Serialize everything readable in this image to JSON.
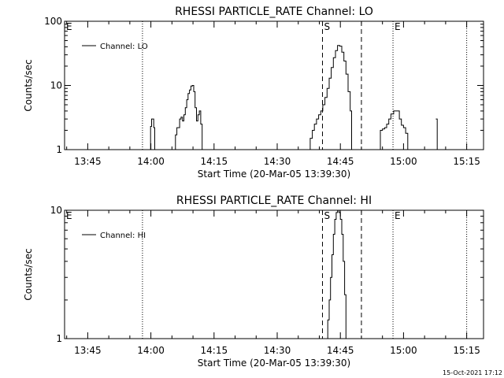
{
  "chart_data": [
    {
      "type": "line",
      "title": "RHESSI PARTICLE_RATE Channel: LO",
      "xlabel": "Start Time (20-Mar-05 13:39:30)",
      "ylabel": "Counts/sec",
      "yscale": "log",
      "ylim": [
        1,
        100
      ],
      "yticks": [
        {
          "value": 1,
          "label": "1"
        },
        {
          "value": 10,
          "label": "10"
        },
        {
          "value": 100,
          "label": "100"
        }
      ],
      "xlim": [
        "13:39:30",
        "15:19:00"
      ],
      "xticks": [
        "13:45",
        "14:00",
        "14:15",
        "14:30",
        "14:45",
        "15:00",
        "15:15"
      ],
      "legend": {
        "position": "top-left",
        "entries": [
          "Channel: LO"
        ]
      },
      "markers": [
        {
          "time": "13:58:00",
          "style": "dotted",
          "label": ""
        },
        {
          "time": "14:40:45",
          "style": "dashed",
          "label": "S"
        },
        {
          "time": "14:50:00",
          "style": "dashed",
          "label": ""
        },
        {
          "time": "14:57:30",
          "style": "dotted",
          "label": ""
        },
        {
          "time": "15:15:00",
          "style": "dotted",
          "label": ""
        }
      ],
      "annotations": [
        {
          "text": "E",
          "time": "13:39:30"
        },
        {
          "text": "S",
          "time": "14:40:45"
        },
        {
          "text": "E",
          "time": "14:57:30"
        }
      ],
      "series": [
        {
          "name": "Channel: LO",
          "segments": [
            [
              [
                "13:59:40",
                1
              ],
              [
                "13:59:55",
                2.3
              ],
              [
                "14:00:10",
                3
              ],
              [
                "14:00:25",
                3
              ],
              [
                "14:00:40",
                2.2
              ],
              [
                "14:00:55",
                1
              ]
            ],
            [
              [
                "14:05:30",
                1
              ],
              [
                "14:05:50",
                1.7
              ],
              [
                "14:06:10",
                2.2
              ],
              [
                "14:06:30",
                2.2
              ],
              [
                "14:06:50",
                3
              ],
              [
                "14:07:10",
                3.2
              ],
              [
                "14:07:30",
                2.8
              ],
              [
                "14:07:50",
                3.5
              ],
              [
                "14:08:10",
                4.5
              ],
              [
                "14:08:30",
                6
              ],
              [
                "14:08:50",
                7.5
              ],
              [
                "14:09:10",
                8.5
              ],
              [
                "14:09:30",
                9.8
              ],
              [
                "14:09:50",
                10
              ],
              [
                "14:10:10",
                8
              ],
              [
                "14:10:30",
                4.5
              ],
              [
                "14:10:50",
                2.8
              ],
              [
                "14:11:10",
                3.5
              ],
              [
                "14:11:30",
                4
              ],
              [
                "14:11:50",
                2.5
              ],
              [
                "14:12:10",
                1
              ]
            ],
            [
              [
                "14:37:30",
                1
              ],
              [
                "14:37:50",
                1.5
              ],
              [
                "14:38:20",
                2
              ],
              [
                "14:38:50",
                2.5
              ],
              [
                "14:39:20",
                3
              ],
              [
                "14:39:50",
                3.5
              ],
              [
                "14:40:20",
                4
              ],
              [
                "14:40:50",
                5
              ],
              [
                "14:41:20",
                6.5
              ],
              [
                "14:41:50",
                9
              ],
              [
                "14:42:20",
                13
              ],
              [
                "14:42:50",
                19
              ],
              [
                "14:43:20",
                27
              ],
              [
                "14:43:50",
                35
              ],
              [
                "14:44:20",
                42
              ],
              [
                "14:44:50",
                41
              ],
              [
                "14:45:20",
                33
              ],
              [
                "14:45:50",
                24
              ],
              [
                "14:46:20",
                15
              ],
              [
                "14:46:50",
                8
              ],
              [
                "14:47:20",
                4
              ],
              [
                "14:47:40",
                1
              ]
            ],
            [
              [
                "14:54:00",
                1
              ],
              [
                "14:54:30",
                2
              ],
              [
                "14:55:00",
                2.1
              ],
              [
                "14:55:30",
                2.2
              ],
              [
                "14:56:00",
                2.5
              ],
              [
                "14:56:30",
                3
              ],
              [
                "14:57:00",
                3.6
              ],
              [
                "14:57:40",
                4
              ],
              [
                "14:58:20",
                4
              ],
              [
                "14:59:00",
                3
              ],
              [
                "14:59:30",
                2.4
              ],
              [
                "15:00:00",
                2.2
              ],
              [
                "15:00:30",
                1.8
              ],
              [
                "15:01:00",
                1
              ]
            ],
            [
              [
                "15:07:40",
                3
              ],
              [
                "15:08:00",
                1
              ]
            ]
          ]
        }
      ]
    },
    {
      "type": "line",
      "title": "RHESSI PARTICLE_RATE Channel: HI",
      "xlabel": "Start Time (20-Mar-05 13:39:30)",
      "ylabel": "Counts/sec",
      "yscale": "log",
      "ylim": [
        1,
        10
      ],
      "yticks": [
        {
          "value": 1,
          "label": "1"
        },
        {
          "value": 10,
          "label": "10"
        }
      ],
      "xlim": [
        "13:39:30",
        "15:19:00"
      ],
      "xticks": [
        "13:45",
        "14:00",
        "14:15",
        "14:30",
        "14:45",
        "15:00",
        "15:15"
      ],
      "legend": {
        "position": "top-left",
        "entries": [
          "Channel: HI"
        ]
      },
      "markers": [
        {
          "time": "13:58:00",
          "style": "dotted",
          "label": ""
        },
        {
          "time": "14:40:45",
          "style": "dashed",
          "label": "S"
        },
        {
          "time": "14:50:00",
          "style": "dashed",
          "label": ""
        },
        {
          "time": "14:57:30",
          "style": "dotted",
          "label": ""
        },
        {
          "time": "15:15:00",
          "style": "dotted",
          "label": ""
        }
      ],
      "annotations": [
        {
          "text": "E",
          "time": "13:39:30"
        },
        {
          "text": "S",
          "time": "14:40:45"
        },
        {
          "text": "E",
          "time": "14:57:30"
        }
      ],
      "series": [
        {
          "name": "Channel: HI",
          "segments": [
            [
              [
                "14:41:40",
                1
              ],
              [
                "14:42:00",
                1.4
              ],
              [
                "14:42:20",
                2
              ],
              [
                "14:42:40",
                3
              ],
              [
                "14:43:00",
                4.5
              ],
              [
                "14:43:20",
                6.5
              ],
              [
                "14:43:40",
                8.5
              ],
              [
                "14:44:00",
                9.6
              ],
              [
                "14:44:20",
                10
              ],
              [
                "14:44:40",
                9.6
              ],
              [
                "14:45:00",
                8.5
              ],
              [
                "14:45:20",
                6.5
              ],
              [
                "14:45:40",
                4
              ],
              [
                "14:46:00",
                2.2
              ],
              [
                "14:46:20",
                1
              ]
            ]
          ]
        }
      ]
    }
  ],
  "footer": {
    "timestamp": "15-Oct-2021 17:12"
  }
}
